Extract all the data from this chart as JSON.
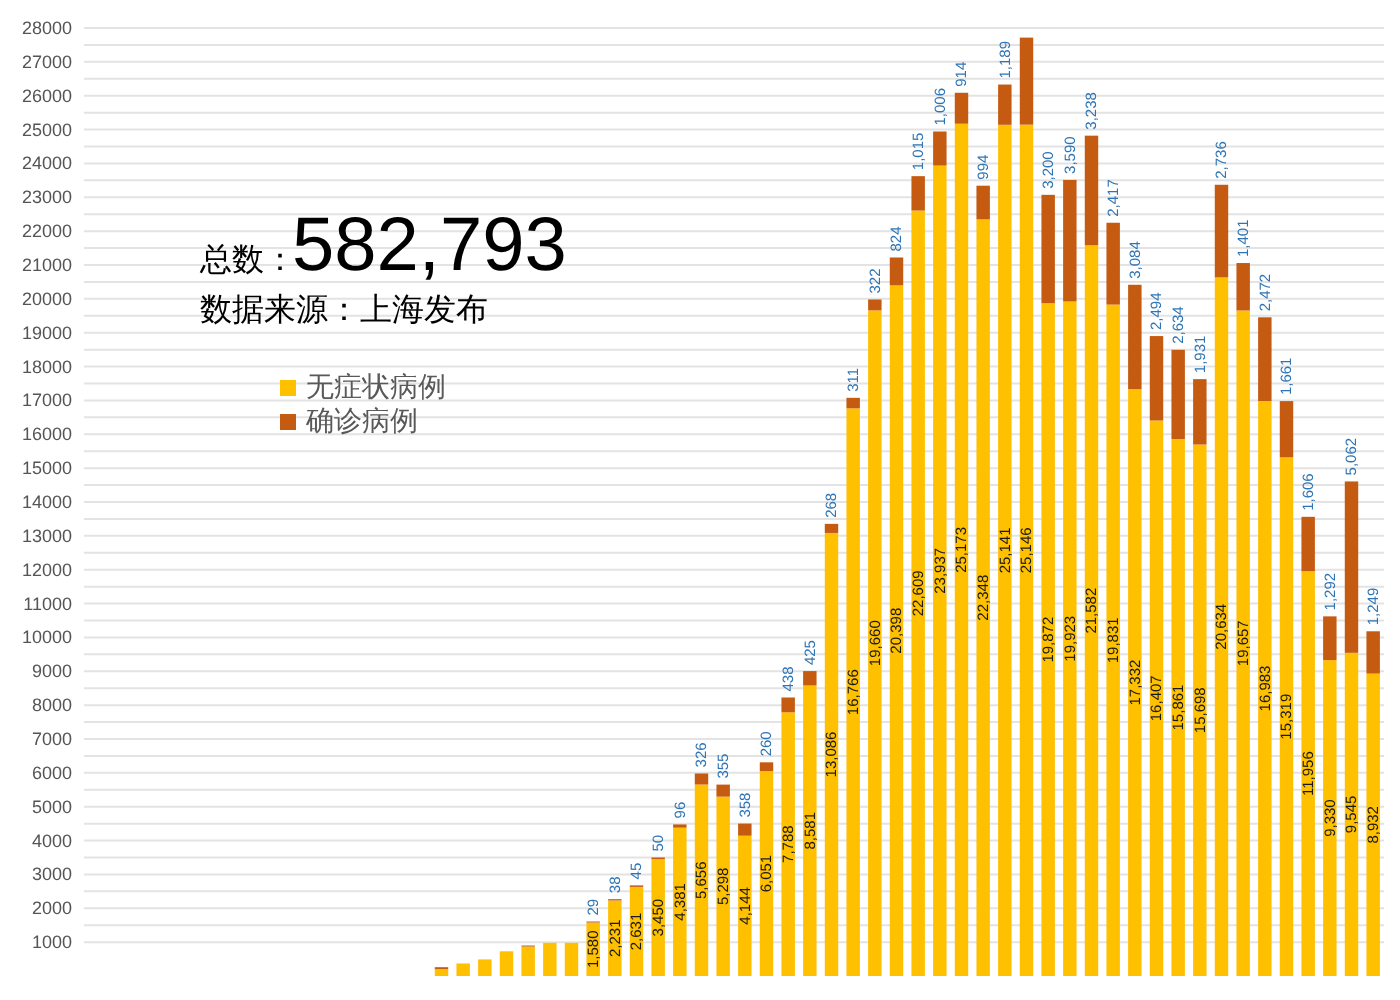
{
  "chart_data": {
    "type": "bar",
    "stacked": true,
    "annotations": [
      "总数：",
      "582,793",
      "数据来源：上海发布"
    ],
    "categories": [
      null,
      null,
      null,
      null,
      null,
      null,
      null,
      null,
      null,
      null,
      null,
      null,
      null,
      null,
      null,
      null,
      null,
      null,
      null,
      null,
      null,
      null,
      null,
      null,
      null,
      null,
      null,
      null,
      null,
      null,
      null,
      null,
      null,
      null,
      null,
      null,
      null,
      null,
      null,
      null,
      null,
      null,
      null,
      null,
      null,
      null,
      null,
      null,
      null,
      null,
      null,
      null,
      null,
      null,
      null,
      null,
      null,
      null,
      null,
      null
    ],
    "series": [
      {
        "name": "无症状病例",
        "color": "#ffc000",
        "values": [
          null,
          null,
          null,
          null,
          null,
          null,
          null,
          null,
          null,
          null,
          null,
          null,
          null,
          null,
          null,
          null,
          200,
          370,
          490,
          730,
          870,
          980,
          980,
          1580,
          2231,
          2631,
          3450,
          4381,
          5656,
          5298,
          4144,
          6051,
          7788,
          8581,
          13086,
          16766,
          19660,
          20398,
          22609,
          23937,
          25173,
          22348,
          25141,
          25146,
          19872,
          19923,
          21582,
          19831,
          17332,
          16407,
          15861,
          15698,
          20634,
          19657,
          16983,
          15319,
          11956,
          9330,
          9545,
          8932
        ],
        "value_labels": [
          null,
          null,
          null,
          null,
          null,
          null,
          null,
          null,
          null,
          null,
          null,
          null,
          null,
          null,
          null,
          null,
          null,
          null,
          null,
          null,
          null,
          null,
          null,
          "1,580",
          "2,231",
          "2,631",
          "3,450",
          "4,381",
          "5,656",
          "5,298",
          "4,144",
          "6,051",
          "7,788",
          "8,581",
          "13,086",
          "16,766",
          "19,660",
          "20,398",
          "22,609",
          "23,937",
          "25,173",
          "22,348",
          "25,141",
          "25,146",
          "19,872",
          "19,923",
          "21,582",
          "19,831",
          "17,332",
          "16,407",
          "15,861",
          "15,698",
          "20,634",
          "19,657",
          "16,983",
          "15,319",
          "11,956",
          "9,330",
          "9,545",
          "8,932"
        ]
      },
      {
        "name": "确诊病例",
        "color": "#c55a11",
        "values": [
          null,
          null,
          null,
          null,
          null,
          null,
          null,
          null,
          null,
          null,
          null,
          null,
          null,
          null,
          null,
          null,
          60,
          null,
          null,
          null,
          30,
          null,
          null,
          29,
          38,
          45,
          50,
          96,
          326,
          355,
          358,
          260,
          438,
          425,
          268,
          311,
          322,
          824,
          1015,
          1006,
          914,
          994,
          1189,
          2570,
          3200,
          3590,
          3238,
          2417,
          3084,
          2494,
          2634,
          1931,
          2736,
          1401,
          2472,
          1661,
          1606,
          1292,
          5062,
          1249
        ],
        "value_labels": [
          null,
          null,
          null,
          null,
          null,
          null,
          null,
          null,
          null,
          null,
          null,
          null,
          null,
          null,
          null,
          null,
          null,
          null,
          null,
          null,
          null,
          null,
          null,
          "29",
          "38",
          "45",
          "50",
          "96",
          "326",
          "355",
          "358",
          "260",
          "438",
          "425",
          "268",
          "311",
          "322",
          "824",
          "1,015",
          "1,006",
          "914",
          "994",
          "1,189",
          null,
          "3,200",
          "3,590",
          "3,238",
          "2,417",
          "3,084",
          "2,494",
          "2,634",
          "1,931",
          "2,736",
          "1,401",
          "2,472",
          "1,661",
          "1,606",
          "1,292",
          "5,062",
          "1,249"
        ]
      }
    ],
    "ylim": [
      0,
      28000
    ],
    "yticks": [
      1000,
      {
        "value": 1500,
        "label": null
      },
      2000,
      {
        "value": 2500,
        "label": null
      },
      3000,
      {
        "value": 3500,
        "label": null
      },
      4000,
      {
        "value": 4500,
        "label": null
      },
      5000,
      {
        "value": 5500,
        "label": null
      },
      6000,
      {
        "value": 6500,
        "label": null
      },
      7000,
      {
        "value": 7500,
        "label": null
      },
      8000,
      {
        "value": 8500,
        "label": null
      },
      9000,
      {
        "value": 9500,
        "label": null
      },
      10000,
      {
        "value": 10500,
        "label": null
      },
      11000,
      {
        "value": 11500,
        "label": null
      },
      12000,
      {
        "value": 12500,
        "label": null
      },
      13000,
      {
        "value": 13500,
        "label": null
      },
      14000,
      {
        "value": 14500,
        "label": null
      },
      15000,
      {
        "value": 15500,
        "label": null
      },
      16000,
      {
        "value": 16500,
        "label": null
      },
      17000,
      {
        "value": 17500,
        "label": null
      },
      18000,
      {
        "value": 18500,
        "label": null
      },
      19000,
      {
        "value": 19500,
        "label": null
      },
      20000,
      {
        "value": 20500,
        "label": null
      },
      21000,
      {
        "value": 21500,
        "label": null
      },
      22000,
      {
        "value": 22500,
        "label": null
      },
      23000,
      {
        "value": 23500,
        "label": null
      },
      24000,
      {
        "value": 24500,
        "label": null
      },
      25000,
      {
        "value": 25500,
        "label": null
      },
      26000,
      {
        "value": 26500,
        "label": null
      },
      27000,
      {
        "value": 27500,
        "label": null
      },
      28000
    ],
    "grid": "y",
    "legend": "left",
    "tick_labels": "y"
  }
}
